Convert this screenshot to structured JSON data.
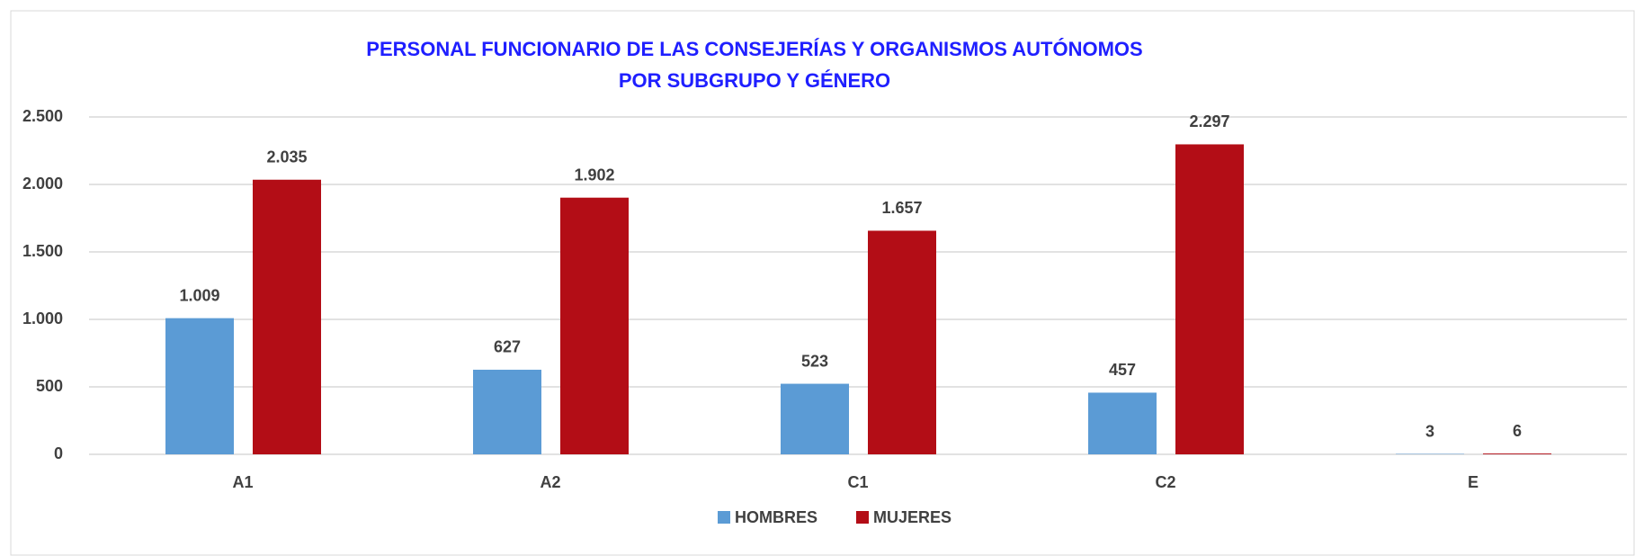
{
  "chart_data": {
    "type": "bar",
    "title": [
      "PERSONAL FUNCIONARIO DE LAS CONSEJERÍAS Y ORGANISMOS AUTÓNOMOS",
      "POR SUBGRUPO Y GÉNERO"
    ],
    "categories": [
      "A1",
      "A2",
      "C1",
      "C2",
      "E"
    ],
    "series": [
      {
        "name": "HOMBRES",
        "color": "#5b9bd5",
        "values": [
          1009,
          627,
          523,
          457,
          3
        ],
        "value_labels": [
          "1.009",
          "627",
          "523",
          "457",
          "3"
        ]
      },
      {
        "name": "MUJERES",
        "color": "#b30d16",
        "values": [
          2035,
          1902,
          1657,
          2297,
          6
        ],
        "value_labels": [
          "2.035",
          "1.902",
          "1.657",
          "2.297",
          "6"
        ]
      }
    ],
    "ylim": [
      0,
      2500
    ],
    "yticks": [
      0,
      500,
      {
        "value": 1000,
        "label": "1.000"
      },
      {
        "value": 1500,
        "label": "1.500"
      },
      {
        "value": 2000,
        "label": "2.000"
      },
      {
        "value": 2500,
        "label": "2.500"
      }
    ],
    "grid": true,
    "legend": "bottom"
  }
}
